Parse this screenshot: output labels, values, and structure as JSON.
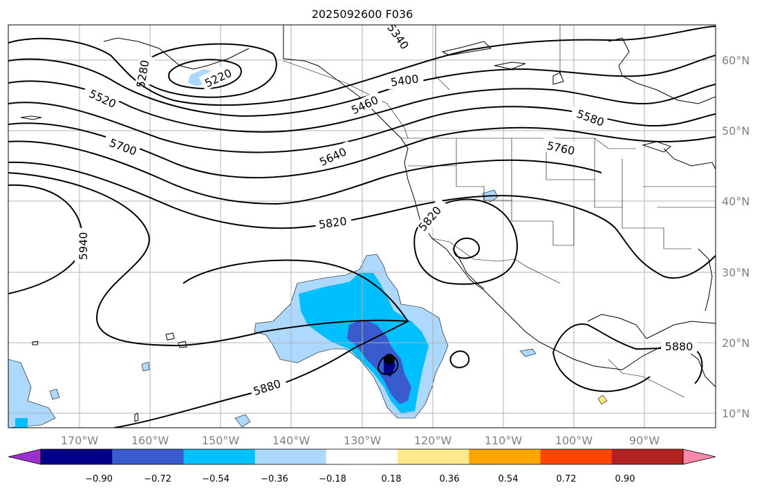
{
  "title": "2025092600 F036",
  "lon_labels": [
    "170°W",
    "160°W",
    "150°W",
    "140°W",
    "130°W",
    "120°W",
    "110°W",
    "100°W",
    "90°W"
  ],
  "lat_labels": [
    "60°N",
    "50°N",
    "40°N",
    "30°N",
    "20°N",
    "10°N"
  ],
  "contour_labels": [
    "5220",
    "5280",
    "5340",
    "5400",
    "5460",
    "5520",
    "5580",
    "5640",
    "5700",
    "5760",
    "5820",
    "5820",
    "5880",
    "5880",
    "5940"
  ],
  "colorbar": {
    "ticks": [
      "−0.90",
      "−0.72",
      "−0.54",
      "−0.36",
      "−0.18",
      "0.18",
      "0.36",
      "0.54",
      "0.72",
      "0.90"
    ],
    "colors": [
      "#9b30d0",
      "#00008b",
      "#3a5bcd",
      "#00bfff",
      "#add8ff",
      "#ffffff",
      "#ffe98a",
      "#ffa500",
      "#ff4500",
      "#b22222",
      "#ff88aa"
    ]
  },
  "colors": {
    "shade_light": "#add8ff",
    "shade_mid": "#00bfff",
    "shade_dark": "#3a5bcd",
    "shade_darkest": "#00008b"
  }
}
